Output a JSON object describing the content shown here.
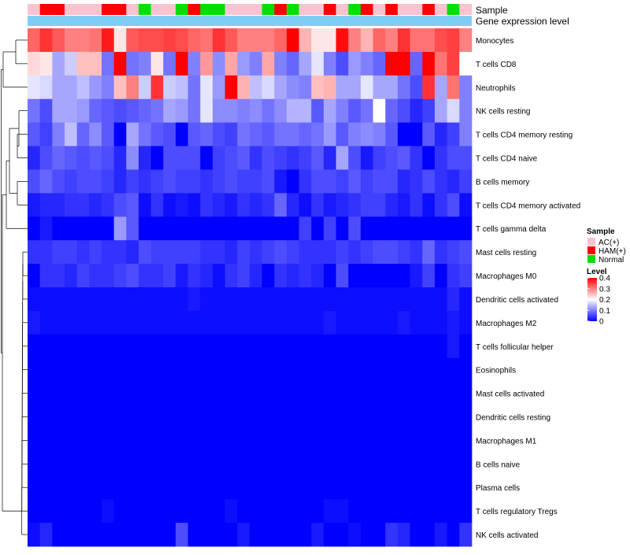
{
  "chart_data": {
    "type": "heatmap",
    "title": "",
    "annotation_tracks": [
      {
        "label": "Sample",
        "values": [
          "AC(+)",
          "HAM(+)",
          "HAM(+)",
          "AC(+)",
          "AC(+)",
          "AC(+)",
          "HAM(+)",
          "HAM(+)",
          "AC(+)",
          "Normal",
          "AC(+)",
          "AC(+)",
          "Normal",
          "HAM(+)",
          "Normal",
          "Normal",
          "AC(+)",
          "AC(+)",
          "AC(+)",
          "Normal",
          "HAM(+)",
          "Normal",
          "AC(+)",
          "AC(+)",
          "HAM(+)",
          "AC(+)",
          "Normal",
          "HAM(+)",
          "AC(+)",
          "HAM(+)",
          "AC(+)",
          "AC(+)",
          "HAM(+)",
          "AC(+)",
          "Normal",
          "AC(+)"
        ]
      },
      {
        "label": "Gene expression level",
        "color": "#7ecdf4"
      }
    ],
    "rows": [
      "Monocytes",
      "T cells CD8",
      "Neutrophils",
      "NK cells resting",
      "T cells CD4 memory resting",
      "T cells CD4 naive",
      "B cells memory",
      "T cells CD4 memory activated",
      "T cells gamma delta",
      "Mast cells resting",
      "Macrophages M0",
      "Dendritic cells activated",
      "Macrophages M2",
      "T cells follicular helper",
      "Eosinophils",
      "Mast cells activated",
      "Dendritic cells resting",
      "Macrophages M1",
      "B cells naive",
      "Plasma cells",
      "T cells regulatory  Tregs",
      "NK cells activated"
    ],
    "n_columns": 36,
    "values": [
      [
        0.32,
        0.36,
        0.33,
        0.3,
        0.3,
        0.31,
        0.38,
        0.22,
        0.33,
        0.34,
        0.34,
        0.35,
        0.34,
        0.32,
        0.31,
        0.36,
        0.33,
        0.3,
        0.3,
        0.3,
        0.32,
        0.4,
        0.26,
        0.22,
        0.22,
        0.39,
        0.3,
        0.26,
        0.32,
        0.3,
        0.36,
        0.31,
        0.31,
        0.34,
        0.35,
        0.3
      ],
      [
        0.23,
        0.22,
        0.13,
        0.16,
        0.25,
        0.25,
        0.09,
        0.42,
        0.09,
        0.1,
        0.22,
        0.09,
        0.4,
        0.1,
        0.28,
        0.11,
        0.27,
        0.12,
        0.1,
        0.27,
        0.1,
        0.08,
        0.13,
        0.18,
        0.1,
        0.06,
        0.12,
        0.1,
        0.08,
        0.42,
        0.42,
        0.08,
        0.4,
        0.31,
        0.35,
        0.2
      ],
      [
        0.18,
        0.17,
        0.13,
        0.13,
        0.15,
        0.12,
        0.1,
        0.25,
        0.3,
        0.16,
        0.36,
        0.16,
        0.15,
        0.09,
        0.18,
        0.12,
        0.42,
        0.26,
        0.15,
        0.17,
        0.13,
        0.11,
        0.1,
        0.25,
        0.26,
        0.13,
        0.13,
        0.18,
        0.13,
        0.13,
        0.09,
        0.06,
        0.36,
        0.13,
        0.31,
        0.1
      ],
      [
        0.09,
        0.06,
        0.13,
        0.13,
        0.12,
        0.08,
        0.07,
        0.06,
        0.07,
        0.08,
        0.09,
        0.13,
        0.12,
        0.09,
        0.18,
        0.11,
        0.11,
        0.1,
        0.11,
        0.09,
        0.11,
        0.14,
        0.14,
        0.07,
        0.13,
        0.1,
        0.07,
        0.09,
        0.2,
        0.08,
        0.06,
        0.03,
        0.05,
        0.13,
        0.17,
        0.1
      ],
      [
        0.07,
        0.05,
        0.1,
        0.15,
        0.08,
        0.11,
        0.07,
        0.0,
        0.13,
        0.09,
        0.07,
        0.06,
        0.0,
        0.07,
        0.08,
        0.06,
        0.05,
        0.09,
        0.08,
        0.07,
        0.09,
        0.09,
        0.08,
        0.09,
        0.12,
        0.07,
        0.1,
        0.11,
        0.1,
        0.07,
        0.0,
        0.0,
        0.07,
        0.03,
        0.05,
        0.1
      ],
      [
        0.03,
        0.06,
        0.08,
        0.07,
        0.06,
        0.07,
        0.06,
        0.03,
        0.11,
        0.03,
        0.0,
        0.06,
        0.06,
        0.06,
        0.0,
        0.05,
        0.06,
        0.07,
        0.04,
        0.06,
        0.05,
        0.04,
        0.05,
        0.07,
        0.03,
        0.13,
        0.06,
        0.02,
        0.05,
        0.06,
        0.07,
        0.04,
        0.0,
        0.04,
        0.06,
        0.06
      ],
      [
        0.06,
        0.08,
        0.06,
        0.05,
        0.06,
        0.06,
        0.05,
        0.03,
        0.05,
        0.04,
        0.05,
        0.06,
        0.05,
        0.05,
        0.04,
        0.05,
        0.06,
        0.05,
        0.05,
        0.06,
        0.02,
        0.0,
        0.04,
        0.06,
        0.06,
        0.05,
        0.07,
        0.05,
        0.06,
        0.06,
        0.03,
        0.04,
        0.06,
        0.04,
        0.03,
        0.05
      ],
      [
        0.02,
        0.03,
        0.03,
        0.04,
        0.04,
        0.03,
        0.04,
        0.06,
        0.07,
        0.01,
        0.04,
        0.01,
        0.02,
        0.01,
        0.04,
        0.03,
        0.02,
        0.04,
        0.03,
        0.04,
        0.08,
        0.03,
        0.01,
        0.04,
        0.02,
        0.03,
        0.04,
        0.05,
        0.05,
        0.03,
        0.02,
        0.04,
        0.01,
        0.04,
        0.06,
        0.01
      ],
      [
        0.0,
        0.02,
        0.0,
        0.0,
        0.0,
        0.0,
        0.0,
        0.12,
        0.07,
        0.0,
        0.0,
        0.0,
        0.0,
        0.0,
        0.0,
        0.0,
        0.0,
        0.0,
        0.0,
        0.0,
        0.0,
        0.0,
        0.05,
        0.0,
        0.05,
        0.0,
        0.06,
        0.0,
        0.0,
        0.0,
        0.0,
        0.0,
        0.0,
        0.0,
        0.0,
        0.0
      ],
      [
        0.04,
        0.04,
        0.05,
        0.05,
        0.04,
        0.05,
        0.04,
        0.04,
        0.03,
        0.06,
        0.05,
        0.05,
        0.05,
        0.05,
        0.04,
        0.04,
        0.03,
        0.05,
        0.04,
        0.05,
        0.06,
        0.05,
        0.04,
        0.04,
        0.04,
        0.05,
        0.04,
        0.05,
        0.06,
        0.06,
        0.05,
        0.04,
        0.08,
        0.04,
        0.05,
        0.06
      ],
      [
        0.0,
        0.04,
        0.04,
        0.03,
        0.05,
        0.04,
        0.04,
        0.05,
        0.06,
        0.04,
        0.04,
        0.05,
        0.02,
        0.04,
        0.03,
        0.01,
        0.04,
        0.05,
        0.03,
        0.0,
        0.04,
        0.03,
        0.04,
        0.03,
        0.0,
        0.06,
        0.0,
        0.0,
        0.0,
        0.0,
        0.0,
        0.02,
        0.05,
        0.0,
        0.04,
        0.05
      ],
      [
        0.01,
        0.01,
        0.01,
        0.01,
        0.01,
        0.01,
        0.01,
        0.01,
        0.01,
        0.01,
        0.01,
        0.01,
        0.01,
        0.02,
        0.01,
        0.01,
        0.01,
        0.01,
        0.01,
        0.01,
        0.01,
        0.01,
        0.01,
        0.01,
        0.01,
        0.01,
        0.01,
        0.01,
        0.01,
        0.01,
        0.01,
        0.01,
        0.01,
        0.01,
        0.03,
        0.01
      ],
      [
        0.02,
        0.01,
        0.01,
        0.01,
        0.01,
        0.01,
        0.01,
        0.01,
        0.01,
        0.01,
        0.01,
        0.01,
        0.01,
        0.01,
        0.01,
        0.01,
        0.01,
        0.01,
        0.01,
        0.01,
        0.01,
        0.01,
        0.01,
        0.01,
        0.02,
        0.01,
        0.01,
        0.01,
        0.01,
        0.01,
        0.02,
        0.01,
        0.01,
        0.01,
        0.02,
        0.01
      ],
      [
        0.0,
        0.0,
        0.0,
        0.0,
        0.0,
        0.0,
        0.0,
        0.0,
        0.0,
        0.0,
        0.0,
        0.0,
        0.0,
        0.0,
        0.0,
        0.0,
        0.0,
        0.0,
        0.0,
        0.0,
        0.0,
        0.0,
        0.0,
        0.0,
        0.0,
        0.0,
        0.0,
        0.0,
        0.0,
        0.0,
        0.0,
        0.0,
        0.0,
        0.0,
        0.02,
        0.0
      ],
      [
        0.0,
        0.0,
        0.0,
        0.0,
        0.0,
        0.0,
        0.0,
        0.0,
        0.0,
        0.0,
        0.0,
        0.0,
        0.0,
        0.0,
        0.0,
        0.0,
        0.0,
        0.0,
        0.0,
        0.0,
        0.0,
        0.0,
        0.0,
        0.0,
        0.0,
        0.0,
        0.0,
        0.0,
        0.0,
        0.0,
        0.0,
        0.0,
        0.0,
        0.0,
        0.0,
        0.0
      ],
      [
        0.0,
        0.0,
        0.0,
        0.0,
        0.0,
        0.0,
        0.0,
        0.0,
        0.0,
        0.0,
        0.0,
        0.0,
        0.0,
        0.0,
        0.0,
        0.0,
        0.0,
        0.0,
        0.0,
        0.0,
        0.0,
        0.0,
        0.0,
        0.0,
        0.0,
        0.0,
        0.0,
        0.0,
        0.0,
        0.0,
        0.0,
        0.0,
        0.0,
        0.0,
        0.0,
        0.0
      ],
      [
        0.0,
        0.0,
        0.0,
        0.0,
        0.0,
        0.0,
        0.0,
        0.0,
        0.0,
        0.0,
        0.0,
        0.0,
        0.0,
        0.0,
        0.0,
        0.0,
        0.0,
        0.0,
        0.0,
        0.0,
        0.0,
        0.0,
        0.0,
        0.0,
        0.0,
        0.0,
        0.0,
        0.0,
        0.0,
        0.0,
        0.0,
        0.0,
        0.0,
        0.0,
        0.0,
        0.0
      ],
      [
        0.0,
        0.0,
        0.0,
        0.0,
        0.0,
        0.0,
        0.0,
        0.0,
        0.0,
        0.0,
        0.0,
        0.0,
        0.0,
        0.0,
        0.0,
        0.0,
        0.0,
        0.0,
        0.0,
        0.0,
        0.0,
        0.0,
        0.0,
        0.0,
        0.0,
        0.0,
        0.0,
        0.0,
        0.0,
        0.0,
        0.0,
        0.0,
        0.0,
        0.0,
        0.0,
        0.0
      ],
      [
        0.0,
        0.0,
        0.0,
        0.0,
        0.0,
        0.0,
        0.0,
        0.0,
        0.0,
        0.0,
        0.0,
        0.0,
        0.0,
        0.0,
        0.0,
        0.0,
        0.0,
        0.0,
        0.0,
        0.0,
        0.0,
        0.0,
        0.0,
        0.0,
        0.0,
        0.0,
        0.0,
        0.0,
        0.0,
        0.0,
        0.0,
        0.0,
        0.0,
        0.0,
        0.0,
        0.0
      ],
      [
        0.0,
        0.0,
        0.0,
        0.0,
        0.0,
        0.0,
        0.0,
        0.0,
        0.0,
        0.0,
        0.0,
        0.0,
        0.0,
        0.0,
        0.0,
        0.0,
        0.0,
        0.0,
        0.0,
        0.0,
        0.0,
        0.0,
        0.0,
        0.0,
        0.0,
        0.0,
        0.0,
        0.0,
        0.0,
        0.0,
        0.0,
        0.0,
        0.0,
        0.0,
        0.0,
        0.0
      ],
      [
        0.0,
        0.0,
        0.0,
        0.0,
        0.0,
        0.0,
        0.01,
        0.0,
        0.0,
        0.0,
        0.0,
        0.0,
        0.0,
        0.0,
        0.0,
        0.0,
        0.01,
        0.0,
        0.0,
        0.0,
        0.0,
        0.0,
        0.0,
        0.0,
        0.01,
        0.01,
        0.0,
        0.0,
        0.0,
        0.0,
        0.0,
        0.0,
        0.0,
        0.0,
        0.0,
        0.0
      ],
      [
        0.01,
        0.03,
        0.0,
        0.0,
        0.0,
        0.0,
        0.0,
        0.0,
        0.0,
        0.0,
        0.0,
        0.0,
        0.06,
        0.0,
        0.0,
        0.0,
        0.0,
        0.02,
        0.0,
        0.0,
        0.0,
        0.0,
        0.0,
        0.02,
        0.0,
        0.0,
        0.01,
        0.0,
        0.0,
        0.04,
        0.03,
        0.0,
        0.0,
        0.02,
        0.0,
        0.04
      ]
    ],
    "legend": {
      "groups": [
        {
          "title": "Sample",
          "items": [
            {
              "label": "AC(+)",
              "color": "#f9c4d0"
            },
            {
              "label": "HAM(+)",
              "color": "#ff0000"
            },
            {
              "label": "Normal",
              "color": "#00e000"
            }
          ]
        },
        {
          "title": "Level",
          "gradient": [
            "#0000ff",
            "#ffffff",
            "#ff0000"
          ],
          "range": [
            0,
            0.4
          ],
          "ticks": [
            "0.4",
            "0.3",
            "0.2",
            "0.1",
            "0"
          ]
        }
      ],
      "position": "right"
    },
    "color_scale": {
      "low": "#0000ff",
      "mid": "#ffffff",
      "high": "#ff0000",
      "domain": [
        0,
        0.2,
        0.4
      ]
    }
  }
}
